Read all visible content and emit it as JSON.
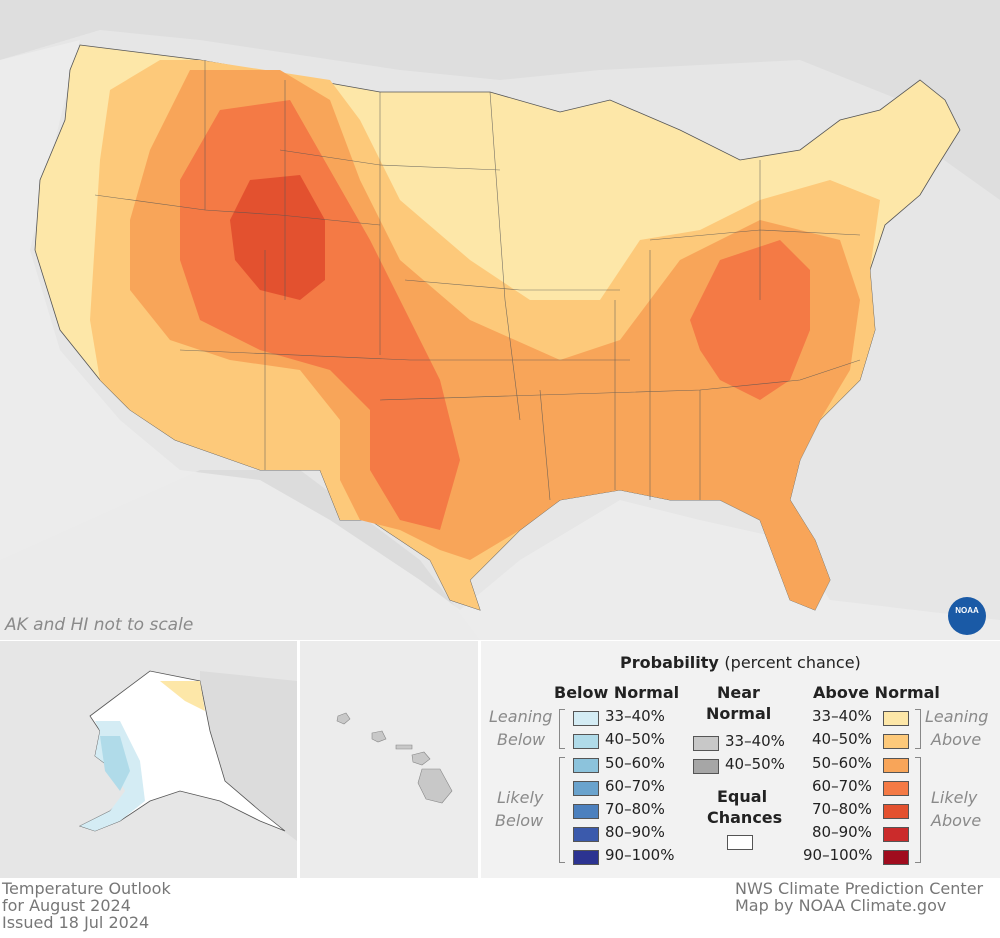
{
  "map": {
    "scale_note": "AK and HI not to scale",
    "logo_text": "NOAA"
  },
  "legend": {
    "title_bold": "Probability",
    "title_rest": "(percent chance)",
    "below_header": "Below Normal",
    "near_header_line1": "Near",
    "near_header_line2": "Normal",
    "above_header": "Above Normal",
    "leaning_below_1": "Leaning",
    "leaning_below_2": "Below",
    "likely_below_1": "Likely",
    "likely_below_2": "Below",
    "leaning_above_1": "Leaning",
    "leaning_above_2": "Above",
    "likely_above_1": "Likely",
    "likely_above_2": "Above",
    "equal_line1": "Equal",
    "equal_line2": "Chances",
    "below_items": [
      {
        "label": "33–40%",
        "color": "#d4ecf4"
      },
      {
        "label": "40–50%",
        "color": "#b0dbe9"
      },
      {
        "label": "50–60%",
        "color": "#8cc3dc"
      },
      {
        "label": "60–70%",
        "color": "#6aa3cd"
      },
      {
        "label": "70–80%",
        "color": "#4c80be"
      },
      {
        "label": "80–90%",
        "color": "#3b5aac"
      },
      {
        "label": "90–100%",
        "color": "#2c3391"
      }
    ],
    "near_items": [
      {
        "label": "33–40%",
        "color": "#c8c8c8"
      },
      {
        "label": "40–50%",
        "color": "#a6a6a6"
      }
    ],
    "above_items": [
      {
        "label": "33–40%",
        "color": "#fde7a8"
      },
      {
        "label": "40–50%",
        "color": "#fdc97a"
      },
      {
        "label": "50–60%",
        "color": "#f8a559"
      },
      {
        "label": "60–70%",
        "color": "#f47a45"
      },
      {
        "label": "70–80%",
        "color": "#e3512f"
      },
      {
        "label": "80–90%",
        "color": "#cb2b2b"
      },
      {
        "label": "90–100%",
        "color": "#a00c1e"
      }
    ],
    "equal_color": "#ffffff"
  },
  "footer": {
    "left_line1": "Temperature Outlook",
    "left_line2": "for August 2024",
    "left_line3": "Issued 18 Jul 2024",
    "right_line1": "NWS Climate Prediction Center",
    "right_line2": "Map by NOAA Climate.gov"
  }
}
